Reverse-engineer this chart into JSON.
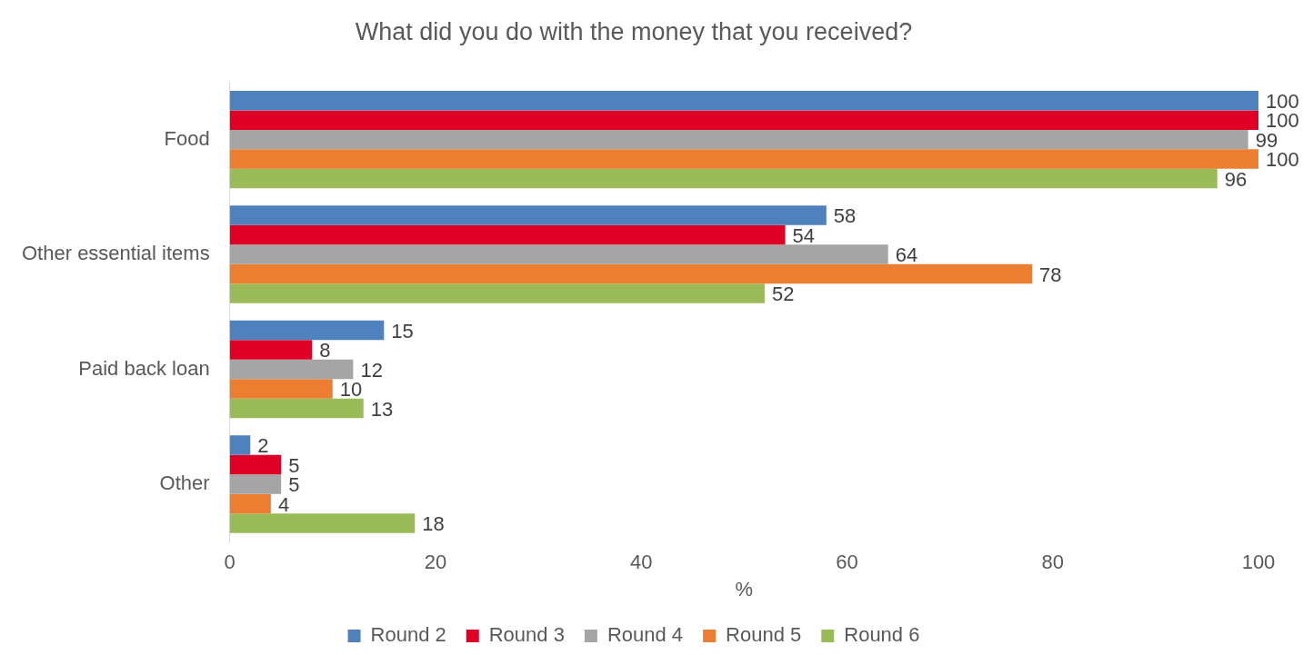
{
  "chart_data": {
    "type": "bar",
    "orientation": "horizontal",
    "title": "What did you do with the money that you received?",
    "xlabel": "%",
    "categories": [
      "Food",
      "Other essential items",
      "Paid back loan",
      "Other"
    ],
    "series": [
      {
        "name": "Round 2",
        "color": "#4f81bd",
        "values": [
          100,
          58,
          15,
          2
        ]
      },
      {
        "name": "Round 3",
        "color": "#e00025",
        "values": [
          100,
          54,
          8,
          5
        ]
      },
      {
        "name": "Round 4",
        "color": "#a5a5a5",
        "values": [
          99,
          64,
          12,
          5
        ]
      },
      {
        "name": "Round 5",
        "color": "#ed7d31",
        "values": [
          100,
          78,
          10,
          4
        ]
      },
      {
        "name": "Round 6",
        "color": "#9bbb59",
        "values": [
          96,
          52,
          13,
          18
        ]
      }
    ],
    "xlim": [
      0,
      100
    ],
    "xticks": [
      0,
      20,
      40,
      60,
      80,
      100
    ],
    "data_labels": true,
    "legend": "bottom"
  }
}
